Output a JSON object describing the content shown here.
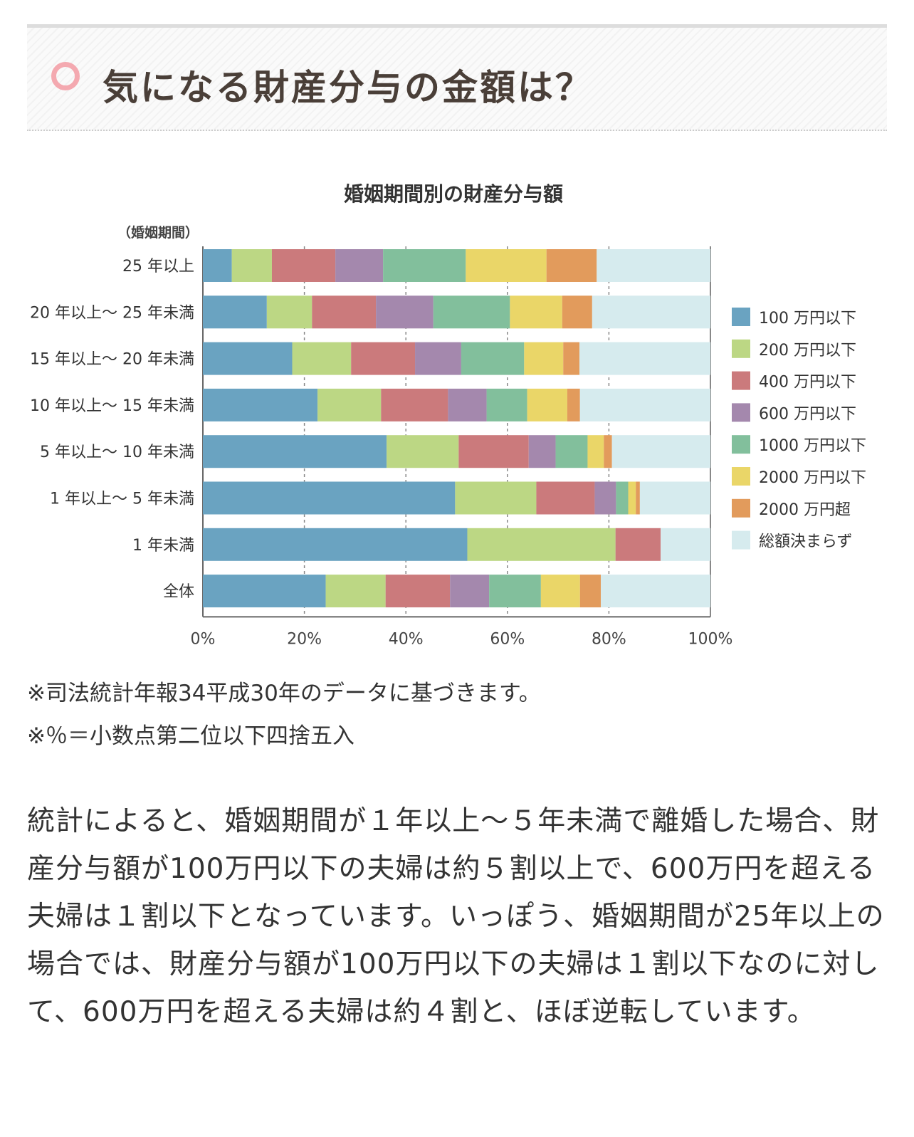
{
  "heading": {
    "text": "気になる財産分与の金額は？"
  },
  "chart_data": {
    "type": "bar",
    "orientation": "horizontal",
    "stacked": true,
    "title": "婚姻期間別の財産分与額",
    "ylabel": "（婚姻期間）",
    "xlim": [
      0,
      100
    ],
    "x_ticks": [
      "0%",
      "20%",
      "40%",
      "60%",
      "80%",
      "100%"
    ],
    "grid": true,
    "legend_position": "right",
    "categories": [
      "25 年以上",
      "20 年以上～ 25 年未満",
      "15 年以上～ 20 年未満",
      "10 年以上～ 15 年未満",
      "5 年以上～ 10 年未満",
      "1 年以上～ 5 年未満",
      "1 年未満",
      "全体"
    ],
    "series": [
      {
        "name": "100 万円以下",
        "color": "#6aa3c1",
        "values": [
          5.7,
          12.6,
          17.6,
          22.6,
          36.2,
          49.7,
          52.1,
          24.2
        ]
      },
      {
        "name": "200 万円以下",
        "color": "#bcd784",
        "values": [
          7.9,
          8.9,
          11.6,
          12.5,
          14.2,
          16.0,
          29.2,
          11.8
        ]
      },
      {
        "name": "400 万円以下",
        "color": "#cb7a7c",
        "values": [
          12.5,
          12.6,
          12.6,
          13.2,
          13.8,
          11.5,
          8.9,
          12.7
        ]
      },
      {
        "name": "600 万円以下",
        "color": "#a488ad",
        "values": [
          9.4,
          11.3,
          9.1,
          7.6,
          5.3,
          4.2,
          0,
          7.7
        ]
      },
      {
        "name": "1000 万円以下",
        "color": "#82bf9c",
        "values": [
          16.3,
          15.1,
          12.4,
          8.0,
          6.3,
          2.4,
          0,
          10.2
        ]
      },
      {
        "name": "2000 万円以下",
        "color": "#ead668",
        "values": [
          15.9,
          10.3,
          7.7,
          7.9,
          3.2,
          1.5,
          0,
          7.7
        ]
      },
      {
        "name": "2000 万円超",
        "color": "#e29b5c",
        "values": [
          9.9,
          5.9,
          3.2,
          2.5,
          1.6,
          0.8,
          0,
          4.1
        ]
      },
      {
        "name": "総額決まらず",
        "color": "#d6ebee",
        "values": [
          22.4,
          23.3,
          25.8,
          25.7,
          19.4,
          13.9,
          9.8,
          21.6
        ]
      }
    ]
  },
  "notes": [
    "※司法統計年報34平成30年のデータに基づきます。",
    "※％＝小数点第二位以下四捨五入"
  ],
  "body": {
    "paragraph": "統計によると、婚姻期間が１年以上～５年未満で離婚した場合、財産分与額が100万円以下の夫婦は約５割以上で、600万円を超える夫婦は１割以下となっています。いっぽう、婚姻期間が25年以上の場合では、財産分与額が100万円以下の夫婦は１割以下なのに対して、600万円を超える夫婦は約４割と、ほぼ逆転しています。"
  }
}
